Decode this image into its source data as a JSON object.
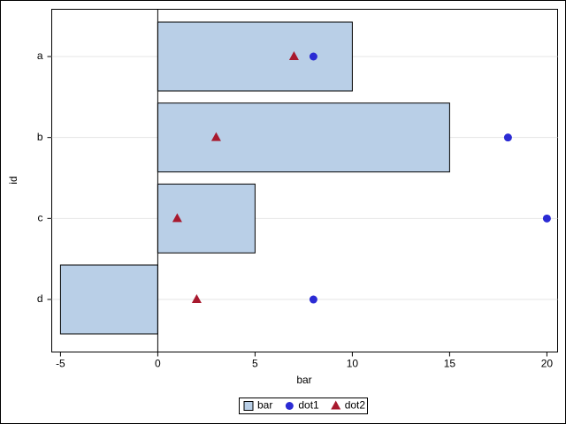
{
  "chart_data": {
    "type": "hbar_scatter",
    "x_label": "bar",
    "y_label": "id",
    "categories": [
      "a",
      "b",
      "c",
      "d"
    ],
    "series": [
      {
        "name": "bar",
        "kind": "bar",
        "color": "#b9cfe7",
        "values": [
          10,
          15,
          5,
          -5
        ]
      },
      {
        "name": "dot1",
        "kind": "circle",
        "color": "#2b2bd4",
        "values": [
          8,
          18,
          20,
          8
        ]
      },
      {
        "name": "dot2",
        "kind": "triangle",
        "color": "#a8192e",
        "values": [
          7,
          3,
          1,
          2
        ]
      }
    ],
    "xlim": [
      -5.45,
      20.55
    ],
    "xticks": [
      -5,
      0,
      5,
      10,
      15,
      20
    ],
    "grid": true
  }
}
